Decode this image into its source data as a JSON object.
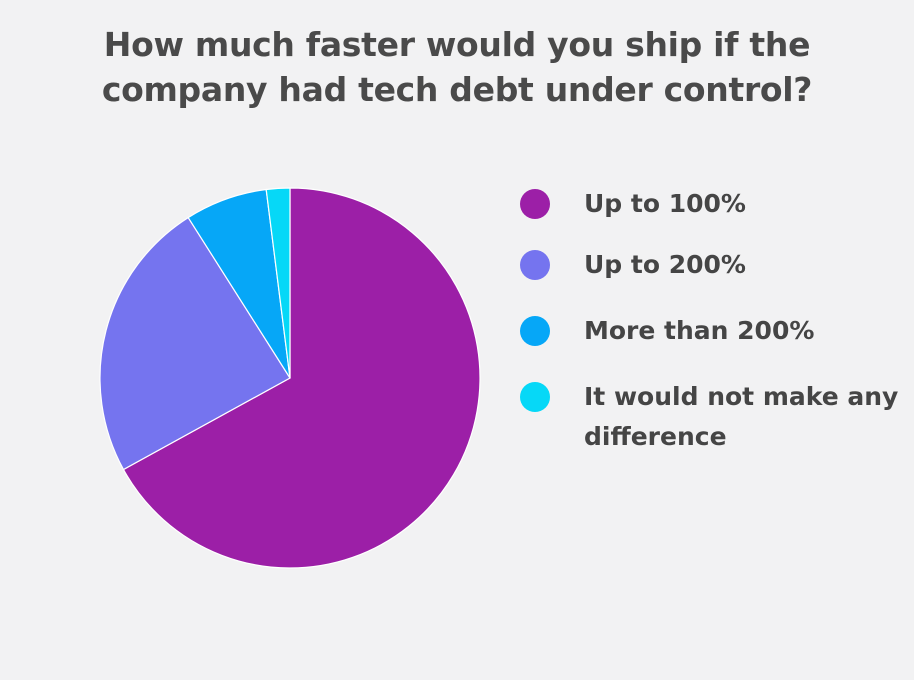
{
  "chart_data": {
    "type": "pie",
    "title_lines": [
      "How much faster would you ship if the",
      "company had tech debt under control?"
    ],
    "categories": [
      "Up to 100%",
      "Up to 200%",
      "More than 200%",
      "It would not make any difference"
    ],
    "legend_lines": [
      [
        "Up to 100%"
      ],
      [
        "Up to 200%"
      ],
      [
        "More than 200%"
      ],
      [
        "It would not make any",
        "difference"
      ]
    ],
    "values": [
      67,
      24,
      7,
      2
    ],
    "colors": [
      "#9c1fa7",
      "#7574ef",
      "#06a7f7",
      "#06d8f7"
    ],
    "legend_position": "right"
  }
}
